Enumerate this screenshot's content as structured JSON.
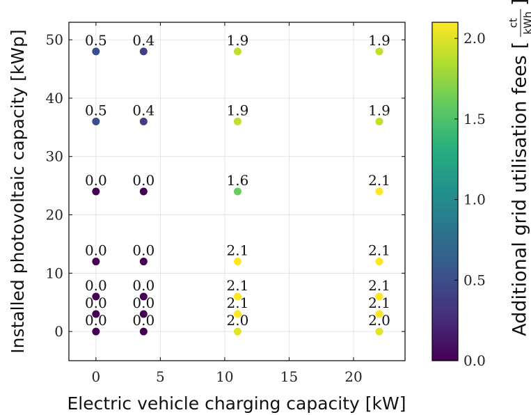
{
  "chart_data": {
    "type": "scatter",
    "xlabel": "Electric vehicle charging capacity [kW]",
    "ylabel": "Installed photovoltaic capacity [kWp]",
    "xlim": [
      -2.1,
      24.0
    ],
    "ylim": [
      -5,
      53
    ],
    "xticks": [
      0,
      5,
      10,
      15,
      20
    ],
    "yticks": [
      0,
      10,
      20,
      30,
      40,
      50
    ],
    "grid": true,
    "colormap": "viridis",
    "colorbar": {
      "label": "Additional grid utilisation fees",
      "unit_numerator": "ct",
      "unit_denominator": "kWh",
      "range": [
        0.0,
        2.1
      ],
      "ticks": [
        "0.0",
        "0.5",
        "1.0",
        "1.5",
        "2.0"
      ]
    },
    "points": [
      {
        "x": 0,
        "y": 0,
        "value": 0.0,
        "label": "0.0"
      },
      {
        "x": 0,
        "y": 3,
        "value": 0.0,
        "label": "0.0"
      },
      {
        "x": 0,
        "y": 6,
        "value": 0.0,
        "label": "0.0"
      },
      {
        "x": 0,
        "y": 12,
        "value": 0.0,
        "label": "0.0"
      },
      {
        "x": 0,
        "y": 24,
        "value": 0.0,
        "label": "0.0"
      },
      {
        "x": 0,
        "y": 36,
        "value": 0.5,
        "label": "0.5"
      },
      {
        "x": 0,
        "y": 48,
        "value": 0.5,
        "label": "0.5"
      },
      {
        "x": 3.7,
        "y": 0,
        "value": 0.0,
        "label": "0.0"
      },
      {
        "x": 3.7,
        "y": 3,
        "value": 0.0,
        "label": "0.0"
      },
      {
        "x": 3.7,
        "y": 6,
        "value": 0.0,
        "label": "0.0"
      },
      {
        "x": 3.7,
        "y": 12,
        "value": 0.0,
        "label": "0.0"
      },
      {
        "x": 3.7,
        "y": 24,
        "value": 0.0,
        "label": "0.0"
      },
      {
        "x": 3.7,
        "y": 36,
        "value": 0.4,
        "label": "0.4"
      },
      {
        "x": 3.7,
        "y": 48,
        "value": 0.4,
        "label": "0.4"
      },
      {
        "x": 11,
        "y": 0,
        "value": 2.0,
        "label": "2.0"
      },
      {
        "x": 11,
        "y": 3,
        "value": 2.1,
        "label": "2.1"
      },
      {
        "x": 11,
        "y": 6,
        "value": 2.1,
        "label": "2.1"
      },
      {
        "x": 11,
        "y": 12,
        "value": 2.1,
        "label": "2.1"
      },
      {
        "x": 11,
        "y": 24,
        "value": 1.6,
        "label": "1.6"
      },
      {
        "x": 11,
        "y": 36,
        "value": 1.9,
        "label": "1.9"
      },
      {
        "x": 11,
        "y": 48,
        "value": 1.9,
        "label": "1.9"
      },
      {
        "x": 22,
        "y": 0,
        "value": 2.0,
        "label": "2.0"
      },
      {
        "x": 22,
        "y": 3,
        "value": 2.1,
        "label": "2.1"
      },
      {
        "x": 22,
        "y": 6,
        "value": 2.1,
        "label": "2.1"
      },
      {
        "x": 22,
        "y": 12,
        "value": 2.1,
        "label": "2.1"
      },
      {
        "x": 22,
        "y": 24,
        "value": 2.1,
        "label": "2.1"
      },
      {
        "x": 22,
        "y": 36,
        "value": 1.9,
        "label": "1.9"
      },
      {
        "x": 22,
        "y": 48,
        "value": 1.9,
        "label": "1.9"
      }
    ]
  }
}
